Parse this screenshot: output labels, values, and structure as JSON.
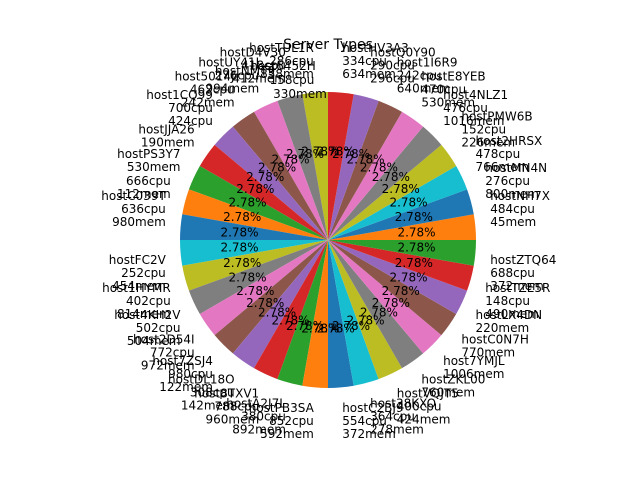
{
  "chart_data": {
    "type": "pie",
    "title": "Server Types",
    "slices": [
      {
        "label": "hostTUL1R\n286cpu\n858mem",
        "pct": "2.78%",
        "color": "#bcbd22"
      },
      {
        "label": "hostD4V30\n418cpu\n412mem",
        "pct": "2.78%",
        "color": "#7f7f7f"
      },
      {
        "label": "hostUY41I\n276cpu\n994mem",
        "pct": "2.78%",
        "color": "#e377c2"
      },
      {
        "label": "host5014J\n462cpu\n242mem",
        "pct": "2.78%",
        "color": "#8c564b"
      },
      {
        "label": "host1CQ99\n700cpu\n424cpu",
        "pct": "2.78%",
        "color": "#9467bd"
      },
      {
        "label": "hostJJA26\n190mem",
        "pct": "2.78%",
        "color": "#d62728"
      },
      {
        "label": "hostPS3Y7\n530mem",
        "pct": "2.78%",
        "color": "#2ca02c"
      },
      {
        "label": "666cpu\n112mem",
        "pct": "2.78%",
        "color": "#ff7f0e"
      },
      {
        "label": "hostC039T\n636cpu\n980mem",
        "pct": "2.78%",
        "color": "#1f77b4"
      },
      {
        "label": "hostFC2V\n252cpu\n454mem",
        "pct": "2.78%",
        "color": "#17becf"
      },
      {
        "label": "host1HYMR\n402cpu\n814mem",
        "pct": "2.78%",
        "color": "#bcbd22"
      },
      {
        "label": "host4KH2V\n502cpu\n504mem",
        "pct": "2.78%",
        "color": "#7f7f7f"
      },
      {
        "label": "host2D54I\n772cpu\n972mem",
        "pct": "2.78%",
        "color": "#e377c2"
      },
      {
        "label": "host7ZSJ4\n980cpu\n122mem",
        "pct": "2.78%",
        "color": "#8c564b"
      },
      {
        "label": "hostDL18O\n308cpu\n142mem",
        "pct": "2.78%",
        "color": "#9467bd"
      },
      {
        "label": "host8TXV1\n788cpu\n960mem",
        "pct": "2.78%",
        "color": "#d62728"
      },
      {
        "label": "hostA2J7L\n380cpu\n892mem",
        "pct": "2.78%",
        "color": "#2ca02c"
      },
      {
        "label": "hostPB3SA\n852cpu\n592mem",
        "pct": "2.78%",
        "color": "#ff7f0e"
      },
      {
        "label": "hostC2BJ9\n554cpu\n372mem",
        "pct": "2.78%",
        "color": "#1f77b4"
      },
      {
        "label": "host38KXO\n364cpu\n278mem",
        "pct": "2.78%",
        "color": "#17becf"
      },
      {
        "label": "hostVQJT5\n400cpu\n424mem",
        "pct": "2.78%",
        "color": "#bcbd22"
      },
      {
        "label": "hostZKL00\n760mem",
        "pct": "2.78%",
        "color": "#7f7f7f"
      },
      {
        "label": "host7YMJL\n1006mem",
        "pct": "2.78%",
        "color": "#e377c2"
      },
      {
        "label": "hostC0N7H\n770mem",
        "pct": "2.78%",
        "color": "#8c564b"
      },
      {
        "label": "hostLX4DN\n220mem",
        "pct": "2.78%",
        "color": "#9467bd"
      },
      {
        "label": "hostTZE5R\n148cpu\n490mem",
        "pct": "2.78%",
        "color": "#d62728"
      },
      {
        "label": "hostZTQ64\n688cpu\n372mem",
        "pct": "2.78%",
        "color": "#2ca02c"
      },
      {
        "label": "hostNH7X\n484cpu\n45mem",
        "pct": "2.78%",
        "color": "#ff7f0e"
      },
      {
        "label": "hostMN4N\n276cpu\n800mem",
        "pct": "2.78%",
        "color": "#1f77b4"
      },
      {
        "label": "host2HRSX\n478cpu\n766mem",
        "pct": "2.78%",
        "color": "#17becf"
      },
      {
        "label": "hostPMW6B\n152cpu\n226mem",
        "pct": "2.78%",
        "color": "#bcbd22"
      },
      {
        "label": "host4NLZ1\n476cpu\n1016mem",
        "pct": "2.78%",
        "color": "#7f7f7f"
      },
      {
        "label": "hostE8YEB\n470cpu\n530mem",
        "pct": "2.78%",
        "color": "#e377c2"
      },
      {
        "label": "host1I6R9\n242cpu\n640mem",
        "pct": "2.78%",
        "color": "#8c564b"
      },
      {
        "label": "hostQ0Y90\n290cpu\n296cpu",
        "pct": "2.78%",
        "color": "#9467bd"
      },
      {
        "label": "hostHV3A3\n334cpu\n634mem",
        "pct": "2.78%",
        "color": "#d62728"
      }
    ],
    "extra_labels": [
      "host6452H",
      "hostNMT9",
      "158cpu",
      "330mem"
    ]
  }
}
